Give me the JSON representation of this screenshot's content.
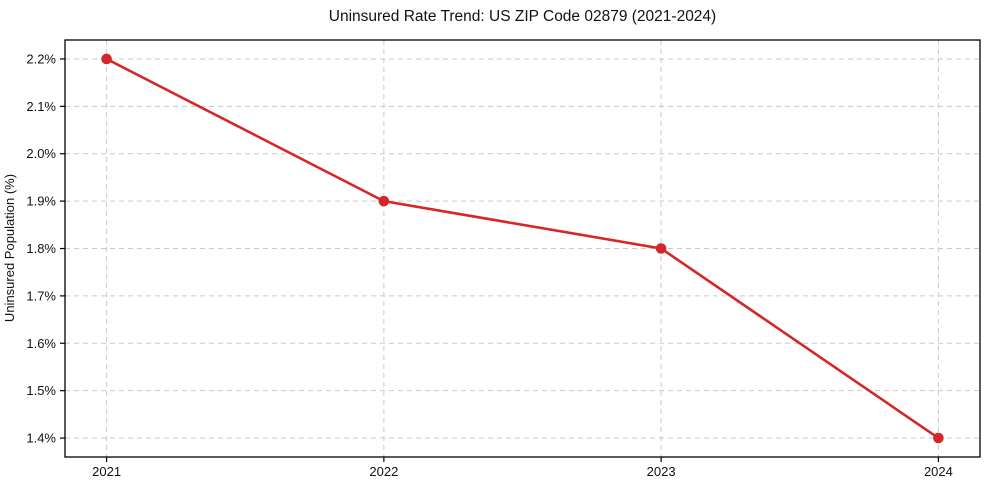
{
  "chart_data": {
    "type": "line",
    "title": "Uninsured Rate Trend: US ZIP Code 02879 (2021-2024)",
    "xlabel": "",
    "ylabel": "Uninsured Population (%)",
    "x": [
      2021,
      2022,
      2023,
      2024
    ],
    "x_tick_labels": [
      "2021",
      "2022",
      "2023",
      "2024"
    ],
    "series": [
      {
        "name": "Uninsured rate",
        "values": [
          2.2,
          1.9,
          1.8,
          1.4
        ]
      }
    ],
    "y_ticks": [
      1.4,
      1.5,
      1.6,
      1.7,
      1.8,
      1.9,
      2.0,
      2.1,
      2.2
    ],
    "y_tick_labels": [
      "1.4%",
      "1.5%",
      "1.6%",
      "1.7%",
      "1.8%",
      "1.9%",
      "2.0%",
      "2.1%",
      "2.2%"
    ],
    "xlim": [
      2020.85,
      2024.15
    ],
    "ylim": [
      1.36,
      2.24
    ],
    "grid": true,
    "grid_style": "dashed",
    "legend_position": "none",
    "line_color": "#d62728",
    "marker": "circle",
    "grid_color": "#c9c9c9",
    "background_color": "#ffffff"
  }
}
